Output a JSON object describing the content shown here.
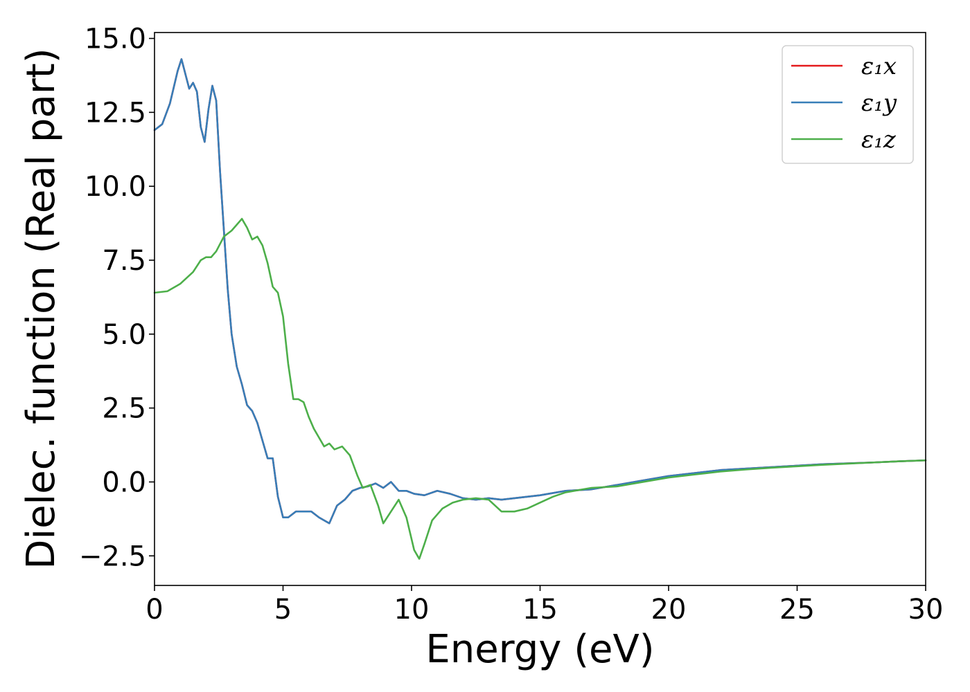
{
  "chart_data": {
    "type": "line",
    "xlabel": "Energy (eV)",
    "ylabel": "Dielec. function (Real part)",
    "xlim": [
      0,
      30
    ],
    "ylim": [
      -3.5,
      15.2
    ],
    "xticks": [
      0,
      5,
      10,
      15,
      20,
      25,
      30
    ],
    "xtick_labels": [
      "0",
      "5",
      "10",
      "15",
      "20",
      "25",
      "30"
    ],
    "yticks": [
      -2.5,
      0,
      2.5,
      5,
      7.5,
      10,
      12.5,
      15
    ],
    "ytick_labels": [
      "−2.5",
      "0.0",
      "2.5",
      "5.0",
      "7.5",
      "10.0",
      "12.5",
      "15.0"
    ],
    "grid": false,
    "legend_position": "top-right",
    "series": [
      {
        "name": "ε₁x",
        "color": "#e41a1c",
        "x": [
          0,
          0.3,
          0.6,
          0.9,
          1.05,
          1.2,
          1.35,
          1.5,
          1.65,
          1.8,
          1.95,
          2.1,
          2.25,
          2.4,
          2.55,
          2.7,
          2.85,
          3.0,
          3.2,
          3.4,
          3.6,
          3.8,
          4.0,
          4.2,
          4.4,
          4.6,
          4.8,
          5.0,
          5.2,
          5.5,
          5.8,
          6.1,
          6.4,
          6.8,
          7.1,
          7.4,
          7.7,
          8.0,
          8.3,
          8.6,
          8.9,
          9.2,
          9.5,
          9.8,
          10.1,
          10.5,
          11.0,
          11.5,
          12.0,
          12.5,
          13.0,
          13.5,
          14.0,
          14.5,
          15.0,
          16.0,
          17.0,
          18.0,
          19.0,
          20.0,
          21.0,
          22.0,
          23.0,
          24.0,
          25.0,
          26.0,
          27.0,
          28.0,
          29.0,
          30.0
        ],
        "y": [
          11.9,
          12.1,
          12.8,
          13.9,
          14.3,
          13.8,
          13.3,
          13.5,
          13.2,
          12.0,
          11.5,
          12.6,
          13.4,
          12.9,
          10.5,
          8.5,
          6.5,
          5.0,
          3.9,
          3.3,
          2.6,
          2.4,
          2.0,
          1.4,
          0.8,
          0.8,
          -0.5,
          -1.2,
          -1.2,
          -1.0,
          -1.0,
          -1.0,
          -1.2,
          -1.4,
          -0.8,
          -0.6,
          -0.3,
          -0.2,
          -0.15,
          -0.05,
          -0.2,
          0.0,
          -0.3,
          -0.3,
          -0.4,
          -0.45,
          -0.3,
          -0.4,
          -0.55,
          -0.6,
          -0.55,
          -0.6,
          -0.55,
          -0.5,
          -0.45,
          -0.3,
          -0.25,
          -0.1,
          0.05,
          0.2,
          0.3,
          0.4,
          0.45,
          0.5,
          0.55,
          0.6,
          0.63,
          0.66,
          0.7,
          0.73
        ]
      },
      {
        "name": "ε₁y",
        "color": "#377eb8",
        "x": [
          0,
          0.3,
          0.6,
          0.9,
          1.05,
          1.2,
          1.35,
          1.5,
          1.65,
          1.8,
          1.95,
          2.1,
          2.25,
          2.4,
          2.55,
          2.7,
          2.85,
          3.0,
          3.2,
          3.4,
          3.6,
          3.8,
          4.0,
          4.2,
          4.4,
          4.6,
          4.8,
          5.0,
          5.2,
          5.5,
          5.8,
          6.1,
          6.4,
          6.8,
          7.1,
          7.4,
          7.7,
          8.0,
          8.3,
          8.6,
          8.9,
          9.2,
          9.5,
          9.8,
          10.1,
          10.5,
          11.0,
          11.5,
          12.0,
          12.5,
          13.0,
          13.5,
          14.0,
          14.5,
          15.0,
          16.0,
          17.0,
          18.0,
          19.0,
          20.0,
          21.0,
          22.0,
          23.0,
          24.0,
          25.0,
          26.0,
          27.0,
          28.0,
          29.0,
          30.0
        ],
        "y": [
          11.9,
          12.1,
          12.8,
          13.9,
          14.3,
          13.8,
          13.3,
          13.5,
          13.2,
          12.0,
          11.5,
          12.6,
          13.4,
          12.9,
          10.5,
          8.5,
          6.5,
          5.0,
          3.9,
          3.3,
          2.6,
          2.4,
          2.0,
          1.4,
          0.8,
          0.8,
          -0.5,
          -1.2,
          -1.2,
          -1.0,
          -1.0,
          -1.0,
          -1.2,
          -1.4,
          -0.8,
          -0.6,
          -0.3,
          -0.2,
          -0.15,
          -0.05,
          -0.2,
          0.0,
          -0.3,
          -0.3,
          -0.4,
          -0.45,
          -0.3,
          -0.4,
          -0.55,
          -0.6,
          -0.55,
          -0.6,
          -0.55,
          -0.5,
          -0.45,
          -0.3,
          -0.25,
          -0.1,
          0.05,
          0.2,
          0.3,
          0.4,
          0.45,
          0.5,
          0.55,
          0.6,
          0.63,
          0.66,
          0.7,
          0.73
        ]
      },
      {
        "name": "ε₁z",
        "color": "#4daf4a",
        "x": [
          0,
          0.5,
          1.0,
          1.5,
          1.8,
          2.0,
          2.2,
          2.4,
          2.7,
          3.0,
          3.2,
          3.4,
          3.6,
          3.8,
          4.0,
          4.2,
          4.4,
          4.6,
          4.8,
          5.0,
          5.2,
          5.4,
          5.6,
          5.8,
          6.0,
          6.2,
          6.4,
          6.6,
          6.8,
          7.0,
          7.3,
          7.6,
          7.9,
          8.1,
          8.4,
          8.7,
          8.9,
          9.2,
          9.5,
          9.8,
          10.1,
          10.3,
          10.5,
          10.8,
          11.2,
          11.6,
          12.0,
          12.5,
          13.0,
          13.5,
          14.0,
          14.5,
          15.0,
          15.5,
          16.0,
          17.0,
          18.0,
          19.0,
          20.0,
          21.0,
          22.0,
          23.0,
          24.0,
          25.0,
          26.0,
          27.0,
          28.0,
          29.0,
          30.0
        ],
        "y": [
          6.4,
          6.45,
          6.7,
          7.1,
          7.5,
          7.6,
          7.6,
          7.8,
          8.3,
          8.5,
          8.7,
          8.9,
          8.6,
          8.2,
          8.3,
          8.0,
          7.4,
          6.6,
          6.4,
          5.6,
          4.0,
          2.8,
          2.8,
          2.7,
          2.2,
          1.8,
          1.5,
          1.2,
          1.3,
          1.1,
          1.2,
          0.9,
          0.2,
          -0.2,
          -0.1,
          -0.8,
          -1.4,
          -1.0,
          -0.6,
          -1.2,
          -2.3,
          -2.6,
          -2.1,
          -1.3,
          -0.9,
          -0.7,
          -0.6,
          -0.55,
          -0.6,
          -1.0,
          -1.0,
          -0.9,
          -0.7,
          -0.5,
          -0.35,
          -0.2,
          -0.15,
          0.0,
          0.15,
          0.25,
          0.35,
          0.42,
          0.48,
          0.53,
          0.58,
          0.62,
          0.66,
          0.7,
          0.73
        ]
      }
    ]
  }
}
